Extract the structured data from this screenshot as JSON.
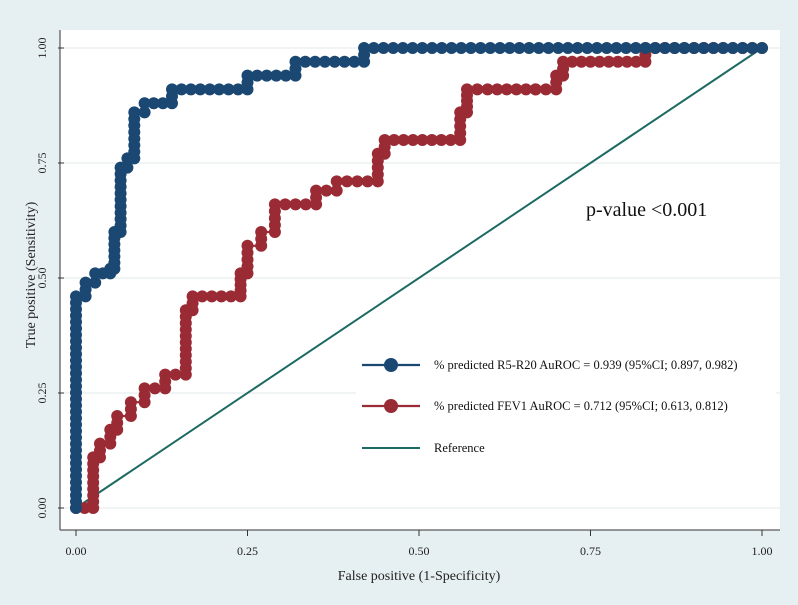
{
  "chart_data": {
    "type": "line",
    "title": "",
    "xlabel": "False positive (1-Specificity)",
    "ylabel": "True positive (Sensitivity)",
    "xlim": [
      0,
      1
    ],
    "ylim": [
      0,
      1
    ],
    "x_ticks": [
      "0.00",
      "0.25",
      "0.50",
      "0.75",
      "1.00"
    ],
    "y_ticks": [
      "0.00",
      "0.25",
      "0.50",
      "0.75",
      "1.00"
    ],
    "annotation": "p-value <0.001",
    "legend_position": "bottom-right",
    "colors": {
      "r5r20": "#1b4872",
      "fev1": "#9a2b35",
      "reference": "#1d6a63",
      "plot_bg": "#ffffff",
      "page_bg": "#e6eff1"
    },
    "series": [
      {
        "name": "% predicted R5-R20 AuROC",
        "legend_stats": " = 0.939 (95%CI;  0.897, 0.982)",
        "marker": "circle",
        "points": [
          [
            0,
            0
          ],
          [
            0,
            0.46
          ],
          [
            0.014,
            0.46
          ],
          [
            0.014,
            0.49
          ],
          [
            0.028,
            0.49
          ],
          [
            0.028,
            0.51
          ],
          [
            0.05,
            0.51
          ],
          [
            0.05,
            0.52
          ],
          [
            0.056,
            0.52
          ],
          [
            0.056,
            0.6
          ],
          [
            0.065,
            0.6
          ],
          [
            0.065,
            0.74
          ],
          [
            0.075,
            0.74
          ],
          [
            0.075,
            0.76
          ],
          [
            0.085,
            0.76
          ],
          [
            0.085,
            0.86
          ],
          [
            0.1,
            0.86
          ],
          [
            0.1,
            0.88
          ],
          [
            0.14,
            0.88
          ],
          [
            0.14,
            0.91
          ],
          [
            0.25,
            0.91
          ],
          [
            0.25,
            0.94
          ],
          [
            0.32,
            0.94
          ],
          [
            0.32,
            0.97
          ],
          [
            0.42,
            0.97
          ],
          [
            0.42,
            1.0
          ],
          [
            1,
            1
          ]
        ]
      },
      {
        "name": "% predicted FEV1 AuROC",
        "legend_stats": " = 0.712 (95%CI;  0.613, 0.812)",
        "marker": "circle",
        "points": [
          [
            0,
            0
          ],
          [
            0.025,
            0
          ],
          [
            0.025,
            0.11
          ],
          [
            0.035,
            0.11
          ],
          [
            0.035,
            0.14
          ],
          [
            0.05,
            0.14
          ],
          [
            0.05,
            0.17
          ],
          [
            0.06,
            0.17
          ],
          [
            0.06,
            0.2
          ],
          [
            0.08,
            0.2
          ],
          [
            0.08,
            0.23
          ],
          [
            0.1,
            0.23
          ],
          [
            0.1,
            0.26
          ],
          [
            0.13,
            0.26
          ],
          [
            0.13,
            0.29
          ],
          [
            0.16,
            0.29
          ],
          [
            0.16,
            0.43
          ],
          [
            0.17,
            0.43
          ],
          [
            0.17,
            0.46
          ],
          [
            0.24,
            0.46
          ],
          [
            0.24,
            0.51
          ],
          [
            0.25,
            0.51
          ],
          [
            0.25,
            0.57
          ],
          [
            0.27,
            0.57
          ],
          [
            0.27,
            0.6
          ],
          [
            0.29,
            0.6
          ],
          [
            0.29,
            0.66
          ],
          [
            0.35,
            0.66
          ],
          [
            0.35,
            0.69
          ],
          [
            0.38,
            0.69
          ],
          [
            0.38,
            0.71
          ],
          [
            0.44,
            0.71
          ],
          [
            0.44,
            0.77
          ],
          [
            0.45,
            0.77
          ],
          [
            0.45,
            0.8
          ],
          [
            0.56,
            0.8
          ],
          [
            0.56,
            0.86
          ],
          [
            0.57,
            0.86
          ],
          [
            0.57,
            0.91
          ],
          [
            0.6,
            0.91
          ],
          [
            0.67,
            0.91
          ],
          [
            0.67,
            0.91
          ],
          [
            0.7,
            0.91
          ],
          [
            0.7,
            0.94
          ],
          [
            0.71,
            0.94
          ],
          [
            0.71,
            0.97
          ],
          [
            0.83,
            0.97
          ],
          [
            0.83,
            1.0
          ],
          [
            1,
            1
          ]
        ]
      },
      {
        "name": "Reference",
        "legend_stats": "",
        "marker": "none",
        "points": [
          [
            0,
            0
          ],
          [
            1,
            1
          ]
        ]
      }
    ]
  }
}
